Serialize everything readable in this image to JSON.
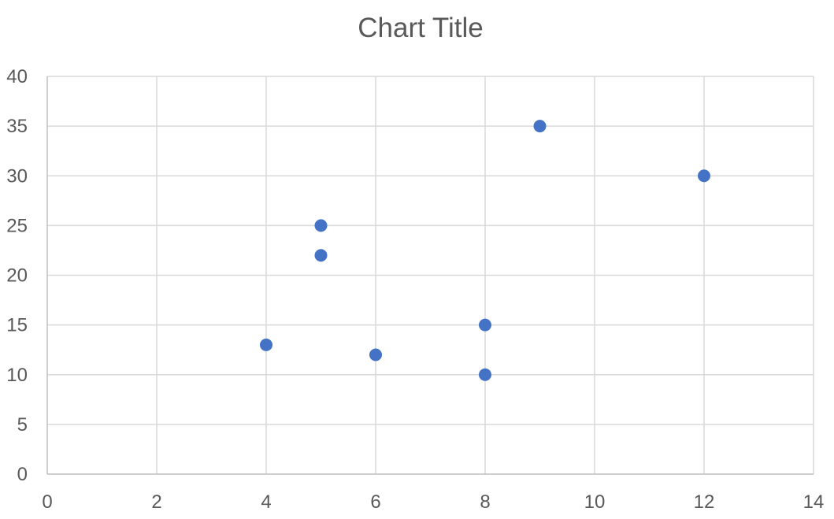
{
  "chart_data": {
    "type": "scatter",
    "title": "Chart Title",
    "xlabel": "",
    "ylabel": "",
    "xlim": [
      0,
      14
    ],
    "ylim": [
      0,
      40
    ],
    "x_ticks": [
      0,
      2,
      4,
      6,
      8,
      10,
      12,
      14
    ],
    "y_ticks": [
      0,
      5,
      10,
      15,
      20,
      25,
      30,
      35,
      40
    ],
    "grid": true,
    "legend": "none",
    "series": [
      {
        "color": "#4472c4",
        "points": [
          {
            "x": 4,
            "y": 13
          },
          {
            "x": 5,
            "y": 25
          },
          {
            "x": 5,
            "y": 22
          },
          {
            "x": 6,
            "y": 12
          },
          {
            "x": 8,
            "y": 15
          },
          {
            "x": 8,
            "y": 10
          },
          {
            "x": 9,
            "y": 35
          },
          {
            "x": 12,
            "y": 30
          }
        ]
      }
    ]
  }
}
